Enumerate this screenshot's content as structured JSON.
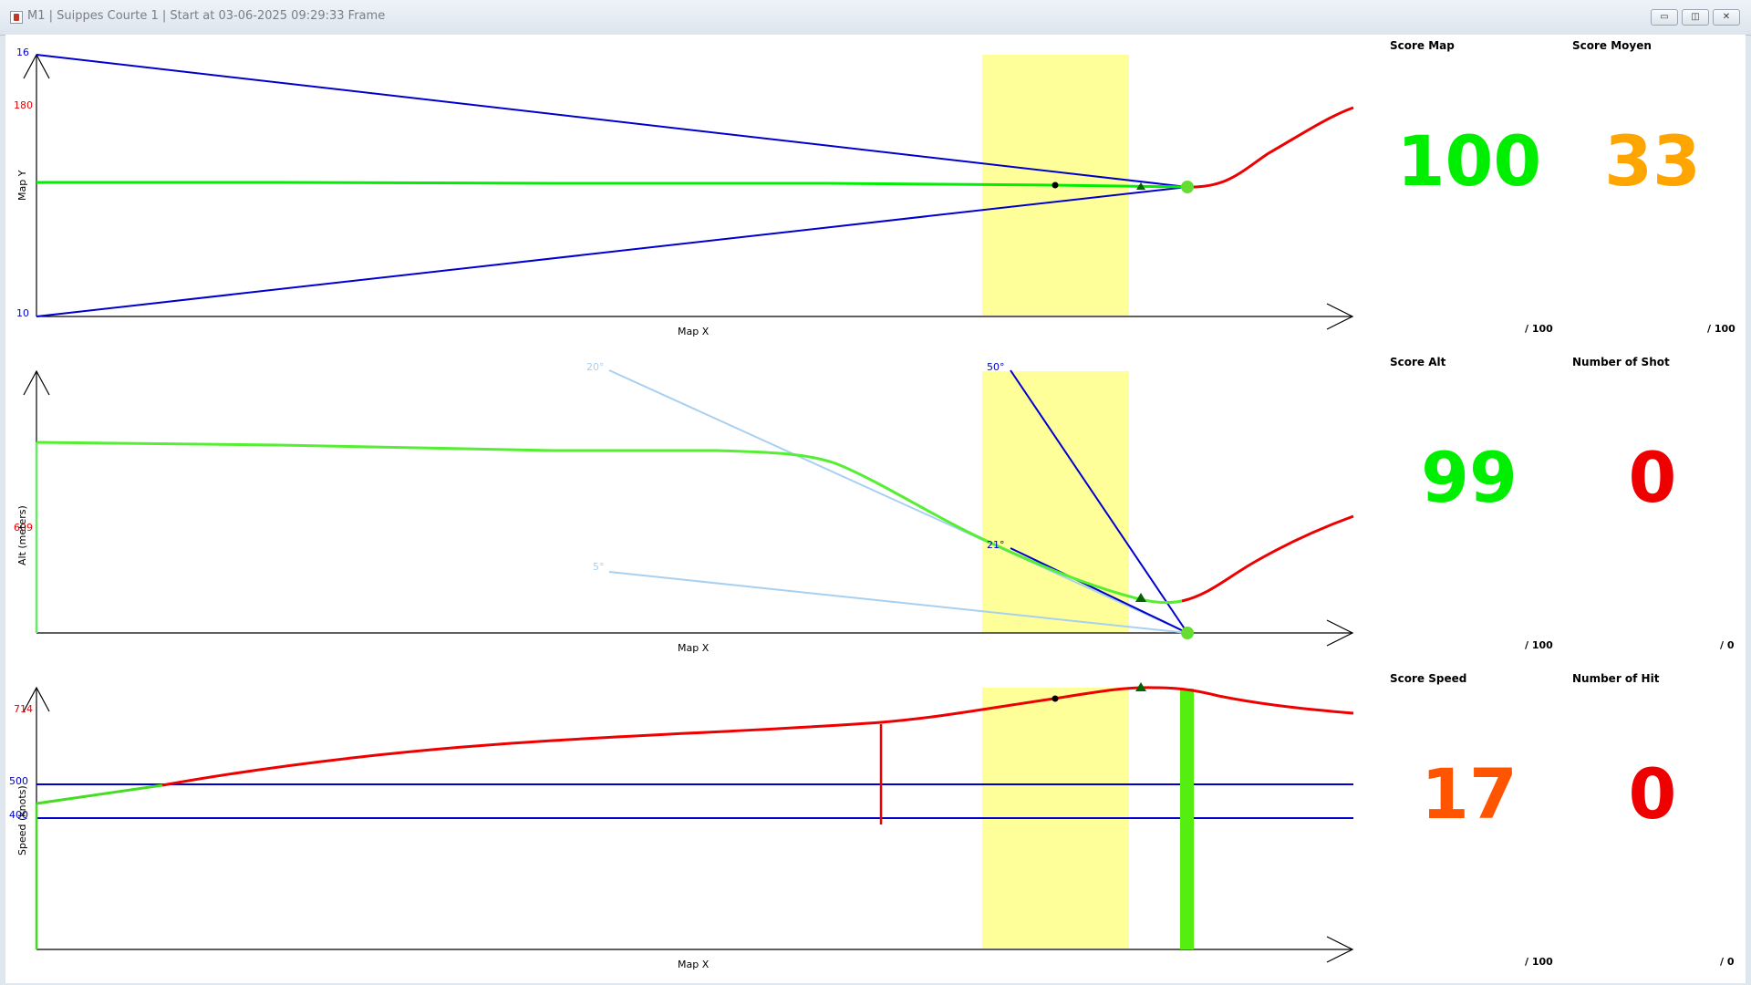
{
  "window": {
    "title": "M1 | Suippes Courte 1 | Start at 03-06-2025 09:29:33 Frame",
    "buttons": [
      "minimize",
      "maximize",
      "close"
    ],
    "icons": {
      "minimize": "▭",
      "maximize": "◫",
      "close": "✕"
    }
  },
  "colors": {
    "flight_track": "#00ee00",
    "late_track": "#ee0000",
    "reference_lines": "#0000cc",
    "reference_lines_light": "#a8d0f0",
    "target_zone": "#ffff99",
    "score_green": "#00ee00",
    "score_orange": "#ffa500",
    "score_red_orange": "#ff5500",
    "score_red": "#ee0000"
  },
  "charts": {
    "map": {
      "xlabel": "Map X",
      "ylabel": "Map Y",
      "ytick_top": "16",
      "ytick_bottom": "10",
      "ytick_red": "180"
    },
    "alt": {
      "xlabel": "Map X",
      "ylabel": "Alt (meters)",
      "ytick_red": "609",
      "angle_labels": [
        "20°",
        "50°",
        "21°",
        "5°"
      ]
    },
    "speed": {
      "xlabel": "Map X",
      "ylabel": "Speed (knots)",
      "ytick_red": "714",
      "ytick_500": "500",
      "ytick_400": "400"
    }
  },
  "scores": {
    "map": {
      "title": "Score Map",
      "value": "100",
      "max": "/ 100"
    },
    "moyen": {
      "title": "Score Moyen",
      "value": "33",
      "max": "/ 100"
    },
    "alt": {
      "title": "Score Alt",
      "value": "99",
      "max": "/ 100"
    },
    "shots": {
      "title": "Number of Shot",
      "value": "0",
      "max": "/ 0"
    },
    "speed": {
      "title": "Score Speed",
      "value": "17",
      "max": "/ 100"
    },
    "hits": {
      "title": "Number of Hit",
      "value": "0",
      "max": "/ 0"
    }
  },
  "chart_data": [
    {
      "type": "line",
      "title": "",
      "xlabel": "Map X",
      "ylabel": "Map Y",
      "y_ticks": [
        "16",
        "10"
      ],
      "extra_tick": "180",
      "series": []
    },
    {
      "type": "line",
      "title": "",
      "xlabel": "Map X",
      "ylabel": "Alt (meters)",
      "y_ticks": [
        "609"
      ],
      "annotations": [
        "20°",
        "50°",
        "21°",
        "5°"
      ],
      "series": []
    },
    {
      "type": "line",
      "title": "",
      "xlabel": "Map X",
      "ylabel": "Speed (knots)",
      "y_ticks": [
        "714",
        "500",
        "400"
      ],
      "reference_lines": [
        500,
        400
      ],
      "series": []
    }
  ]
}
